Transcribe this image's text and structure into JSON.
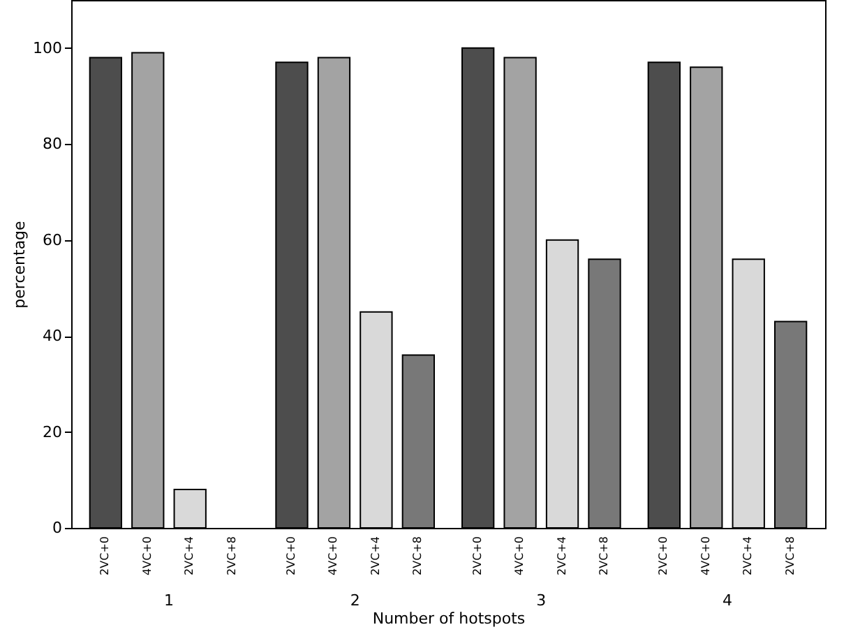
{
  "chart_data": {
    "type": "bar",
    "xlabel": "Number of hotspots",
    "ylabel": "percentage",
    "categories": [
      "1",
      "2",
      "3",
      "4"
    ],
    "series": [
      {
        "name": "2VC+0",
        "color": "#4d4d4d",
        "values": [
          98,
          97,
          100,
          97
        ]
      },
      {
        "name": "4VC+0",
        "color": "#a3a3a3",
        "values": [
          99,
          98,
          98,
          96
        ]
      },
      {
        "name": "2VC+4",
        "color": "#d9d9d9",
        "values": [
          8,
          45,
          60,
          56
        ]
      },
      {
        "name": "2VC+8",
        "color": "#787878",
        "values": [
          null,
          36,
          56,
          43
        ]
      }
    ],
    "ylim": [
      0,
      110
    ],
    "yticks": [
      0,
      20,
      40,
      60,
      80,
      100
    ],
    "grid": false
  }
}
